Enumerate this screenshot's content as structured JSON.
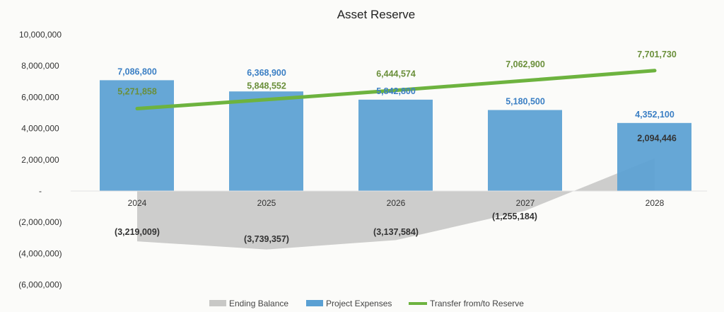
{
  "chart_data": {
    "type": "bar",
    "title": "Asset Reserve",
    "categories": [
      "2024",
      "2025",
      "2026",
      "2027",
      "2028"
    ],
    "ylim": [
      -6000000,
      10000000
    ],
    "yticks": [
      10000000,
      8000000,
      6000000,
      4000000,
      2000000,
      0,
      -2000000,
      -4000000,
      -6000000
    ],
    "ytick_labels": [
      "10,000,000",
      "8,000,000",
      "6,000,000",
      "4,000,000",
      "2,000,000",
      "-",
      "(2,000,000)",
      "(4,000,000)",
      "(6,000,000)"
    ],
    "grid": false,
    "legend_placement": "bottom",
    "series": [
      {
        "name": "Ending Balance",
        "type": "area",
        "color": "#c8c8c6",
        "values": [
          -3219009,
          -3739357,
          -3137584,
          -1255184,
          2094446
        ],
        "labels": [
          "(3,219,009)",
          "(3,739,357)",
          "(3,137,584)",
          "(1,255,184)",
          "2,094,446"
        ]
      },
      {
        "name": "Project Expenses",
        "type": "bar",
        "color": "#5aa0d3",
        "values": [
          7086800,
          6368900,
          5842800,
          5180500,
          4352100
        ],
        "labels": [
          "7,086,800",
          "6,368,900",
          "5,842,800",
          "5,180,500",
          "4,352,100"
        ]
      },
      {
        "name": "Transfer from/to Reserve",
        "type": "line",
        "color": "#6db33f",
        "values": [
          5271858,
          5848552,
          6444574,
          7062900,
          7701730
        ],
        "labels": [
          "5,271,858",
          "5,848,552",
          "6,444,574",
          "7,062,900",
          "7,701,730"
        ]
      }
    ]
  }
}
